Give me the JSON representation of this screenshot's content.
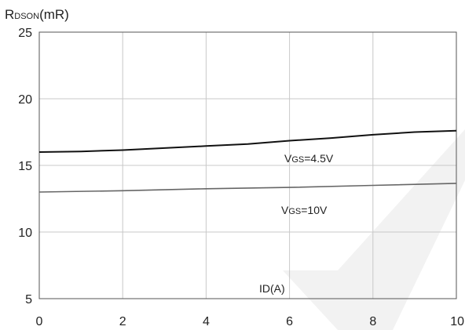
{
  "chart_data": {
    "type": "line",
    "ylabel": {
      "main": "R",
      "sub": "DSON",
      "rest": "(mR)"
    },
    "xlabel": "ID(A)",
    "xlim": [
      0,
      10
    ],
    "ylim": [
      5,
      25
    ],
    "xticks": [
      0,
      2,
      4,
      6,
      8,
      10
    ],
    "yticks": [
      5,
      10,
      15,
      20,
      25
    ],
    "grid": true,
    "series": [
      {
        "label": {
          "main": "V",
          "sub": "GS",
          "rest": "=4.5V"
        },
        "color": "#111111",
        "x": [
          0,
          1,
          2,
          3,
          4,
          5,
          6,
          7,
          8,
          9,
          10
        ],
        "y": [
          16.0,
          16.05,
          16.15,
          16.3,
          16.45,
          16.6,
          16.85,
          17.05,
          17.3,
          17.5,
          17.6
        ]
      },
      {
        "label": {
          "main": "V",
          "sub": "GS",
          "rest": "=10V"
        },
        "color": "#666666",
        "x": [
          0,
          2,
          4,
          6,
          8,
          10
        ],
        "y": [
          13.0,
          13.1,
          13.25,
          13.35,
          13.5,
          13.65
        ]
      }
    ]
  }
}
